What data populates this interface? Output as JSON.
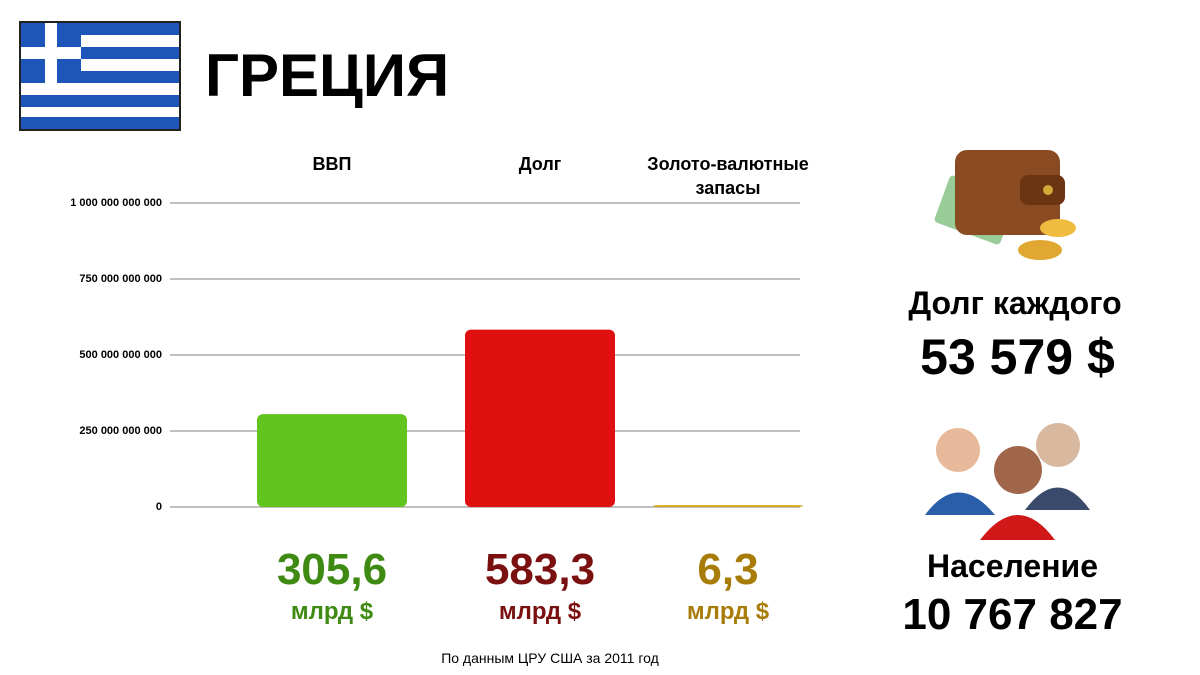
{
  "chart_data": {
    "type": "bar",
    "title": "ГРЕЦИЯ",
    "categories": [
      "ВВП",
      "Долг",
      "Золото-валютные запасы"
    ],
    "values": [
      305600000000,
      583300000000,
      6300000000
    ],
    "value_labels": [
      "305,6",
      "583,3",
      "6,3"
    ],
    "value_unit": "млрд $",
    "colors": [
      "#62c41e",
      "#e01010",
      "#d8a514"
    ],
    "label_colors": [
      "#3f8a12",
      "#7a1010",
      "#a87c08"
    ],
    "ylim": [
      0,
      1000000000000
    ],
    "yticks": [
      0,
      {
        "value": 250000000000,
        "label": "250 000 000 000"
      },
      {
        "value": 500000000000,
        "label": "500 000 000 000"
      },
      {
        "value": 750000000000,
        "label": "750 000 000 000"
      },
      {
        "value": 1000000000000,
        "label": "1 000 000 000 000"
      }
    ],
    "grid": true,
    "source": "По данным ЦРУ США за 2011 год"
  },
  "side": {
    "debt_label": "Долг каждого",
    "debt_value": "53 579 $",
    "population_label": "Население",
    "population_value": "10 767 827"
  }
}
